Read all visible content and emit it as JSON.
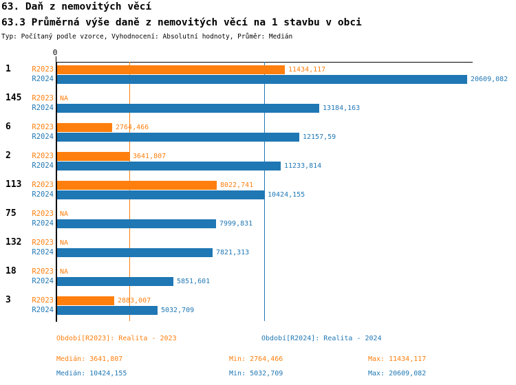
{
  "header": {
    "title1": "63. Daň z nemovitých věcí",
    "title2": "63.3 Průměrná výše daně z nemovitých věcí na 1 stavbu v obci",
    "meta": "Typ: Počítaný podle vzorce, Vyhodnocení: Absolutní hodnoty, Průměr: Medián"
  },
  "colors": {
    "r2023": "#ff7f0e",
    "r2024": "#1f77b4",
    "axis": "#000000"
  },
  "axis": {
    "zero_label": "0"
  },
  "chart_data": {
    "type": "bar",
    "orientation": "horizontal",
    "title": "63.3 Průměrná výše daně z nemovitých věcí na 1 stavbu v obci",
    "categories": [
      "1",
      "145",
      "6",
      "2",
      "113",
      "75",
      "132",
      "18",
      "3"
    ],
    "series": [
      {
        "name": "R2023",
        "color": "#ff7f0e",
        "values": [
          11434.117,
          null,
          2764.466,
          3641.807,
          8022.741,
          null,
          null,
          null,
          2883.007
        ],
        "labels": [
          "11434,117",
          "NA",
          "2764,466",
          "3641,807",
          "8022,741",
          "NA",
          "NA",
          "NA",
          "2883,007"
        ]
      },
      {
        "name": "R2024",
        "color": "#1f77b4",
        "values": [
          20609.082,
          13184.163,
          12157.59,
          11233.814,
          10424.155,
          7999.831,
          7821.313,
          5851.601,
          5032.709
        ],
        "labels": [
          "20609,082",
          "13184,163",
          "12157,59",
          "11233,814",
          "10424,155",
          "7999,831",
          "7821,313",
          "5851,601",
          "5032,709"
        ]
      }
    ],
    "na_text": "NA",
    "xlim": [
      0,
      20900
    ],
    "grid": false,
    "reference_lines": [
      {
        "name": "median-r2023",
        "value": 3641.807,
        "color": "#ff7f0e"
      },
      {
        "name": "median-r2024",
        "value": 10424.155,
        "color": "#1f77b4"
      }
    ]
  },
  "legend": {
    "r2023": "Období[R2023]: Realita - 2023",
    "r2024": "Období[R2024]: Realita - 2024"
  },
  "stats": {
    "r2023": {
      "median": "Medián: 3641,807",
      "min": "Min: 2764,466",
      "max": "Max: 11434,117"
    },
    "r2024": {
      "median": "Medián: 10424,155",
      "min": "Min: 5032,709",
      "max": "Max: 20609,082"
    }
  }
}
